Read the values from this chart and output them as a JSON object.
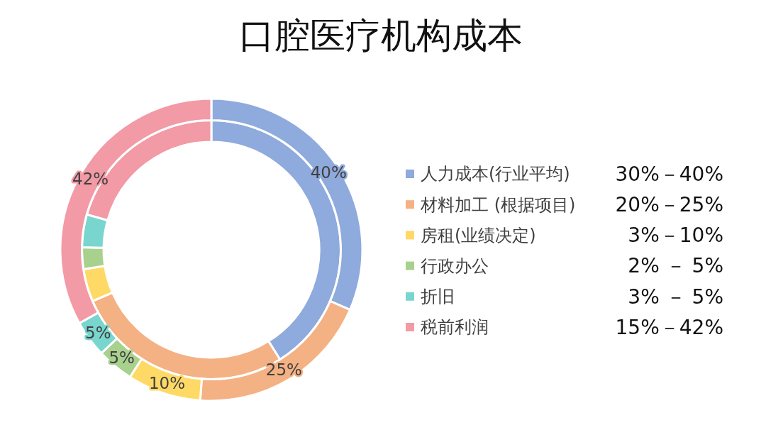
{
  "chart_data": {
    "type": "donut",
    "title": "口腔医疗机构成本",
    "categories": [
      "人力成本(行业平均)",
      "材料加工 (根据项目)",
      "房租(业绩决定)",
      "行政办公",
      "折旧",
      "税前利润"
    ],
    "colors": [
      "#8faadc",
      "#f4b183",
      "#ffd966",
      "#a9d18e",
      "#79d6cf",
      "#f29aa6"
    ],
    "series": [
      {
        "values": [
          41.1,
          27.4,
          4.1,
          2.7,
          4.1,
          20.6
        ]
      },
      {
        "values": [
          40,
          25,
          10,
          5,
          5,
          42
        ],
        "value_labels": [
          "40%",
          "25%",
          "10%",
          "5%",
          "5%",
          "42%"
        ]
      }
    ],
    "legend": "right",
    "annotations": [
      "30%－40%",
      "20%－25%",
      "3%－10%",
      "2% － 5%",
      "3% － 5%",
      "15%－42%"
    ]
  }
}
